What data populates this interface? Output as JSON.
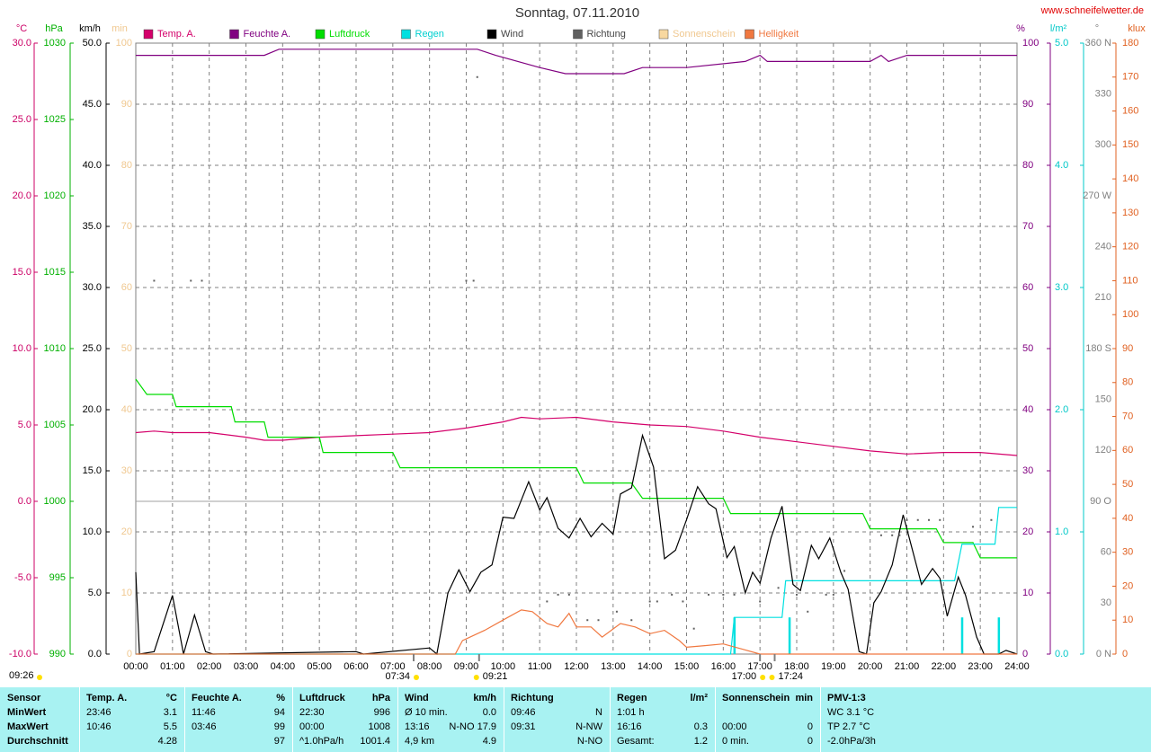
{
  "chart_data": {
    "type": "multi-axis-line",
    "title": "Sonntag, 07.11.2010",
    "source": "www.schneifelwetter.de",
    "grid": true,
    "xlim": [
      0,
      24
    ],
    "xticks": [
      {
        "value": 0,
        "label": "00:00"
      },
      {
        "value": 1,
        "label": "01:00"
      },
      {
        "value": 2,
        "label": "02:00"
      },
      {
        "value": 3,
        "label": "03:00"
      },
      {
        "value": 4,
        "label": "04:00"
      },
      {
        "value": 5,
        "label": "05:00"
      },
      {
        "value": 6,
        "label": "06:00"
      },
      {
        "value": 7,
        "label": "07:00"
      },
      {
        "value": 8,
        "label": "08:00"
      },
      {
        "value": 9,
        "label": "09:00"
      },
      {
        "value": 10,
        "label": "10:00"
      },
      {
        "value": 11,
        "label": "11:00"
      },
      {
        "value": 12,
        "label": "12:00"
      },
      {
        "value": 13,
        "label": "13:00"
      },
      {
        "value": 14,
        "label": "14:00"
      },
      {
        "value": 15,
        "label": "15:00"
      },
      {
        "value": 16,
        "label": "16:00"
      },
      {
        "value": 17,
        "label": "17:00"
      },
      {
        "value": 18,
        "label": "18:00"
      },
      {
        "value": 19,
        "label": "19:00"
      },
      {
        "value": 20,
        "label": "20:00"
      },
      {
        "value": 21,
        "label": "21:00"
      },
      {
        "value": 22,
        "label": "22:00"
      },
      {
        "value": 23,
        "label": "23:00"
      },
      {
        "value": 24,
        "label": "24:00"
      }
    ],
    "axes": [
      {
        "unit": "°C",
        "color": "#cc0066",
        "lim": [
          -10,
          30
        ],
        "ticks": [
          {
            "value": -10,
            "label": "-10.0"
          },
          {
            "value": -5,
            "label": "-5.0"
          },
          {
            "value": 0,
            "label": "0.0"
          },
          {
            "value": 5,
            "label": "5.0"
          },
          {
            "value": 10,
            "label": "10.0"
          },
          {
            "value": 15,
            "label": "15.0"
          },
          {
            "value": 20,
            "label": "20.0"
          },
          {
            "value": 25,
            "label": "25.0"
          },
          {
            "value": 30,
            "label": "30.0"
          }
        ]
      },
      {
        "unit": "hPa",
        "color": "#00b000",
        "lim": [
          990,
          1030
        ],
        "ticks": [
          990,
          995,
          1000,
          1005,
          1010,
          1015,
          1020,
          1025,
          1030
        ]
      },
      {
        "unit": "km/h",
        "color": "#000000",
        "lim": [
          0,
          50
        ],
        "ticks": [
          {
            "value": 0,
            "label": "0.0"
          },
          {
            "value": 5,
            "label": "5.0"
          },
          {
            "value": 10,
            "label": "10.0"
          },
          {
            "value": 15,
            "label": "15.0"
          },
          {
            "value": 20,
            "label": "20.0"
          },
          {
            "value": 25,
            "label": "25.0"
          },
          {
            "value": 30,
            "label": "30.0"
          },
          {
            "value": 35,
            "label": "35.0"
          },
          {
            "value": 40,
            "label": "40.0"
          },
          {
            "value": 45,
            "label": "45.0"
          },
          {
            "value": 50,
            "label": "50.0"
          }
        ]
      },
      {
        "unit": "min",
        "color": "#f0c890",
        "lim": [
          0,
          100
        ],
        "ticks": [
          0,
          10,
          20,
          30,
          40,
          50,
          60,
          70,
          80,
          90,
          100
        ]
      },
      {
        "unit": "%",
        "color": "#800080",
        "lim": [
          0,
          100
        ],
        "ticks": [
          0,
          10,
          20,
          30,
          40,
          50,
          60,
          70,
          80,
          90,
          100
        ]
      },
      {
        "unit": "l/m²",
        "color": "#00c8c8",
        "lim": [
          0,
          5
        ],
        "ticks": [
          {
            "value": 0,
            "label": "0.0"
          },
          {
            "value": 1,
            "label": "1.0"
          },
          {
            "value": 2,
            "label": "2.0"
          },
          {
            "value": 3,
            "label": "3.0"
          },
          {
            "value": 4,
            "label": "4.0"
          },
          {
            "value": 5,
            "label": "5.0"
          }
        ]
      },
      {
        "unit": "°",
        "color": "#808080",
        "lim": [
          0,
          360
        ],
        "ticks": [
          {
            "value": 0,
            "label": "0   N"
          },
          30,
          60,
          {
            "value": 90,
            "label": "90  O"
          },
          120,
          150,
          {
            "value": 180,
            "label": "180 S"
          },
          210,
          240,
          {
            "value": 270,
            "label": "270 W"
          },
          300,
          330,
          {
            "value": 360,
            "label": "360 N"
          }
        ]
      },
      {
        "unit": "klux",
        "color": "#e06020",
        "lim": [
          0,
          180
        ],
        "ticks": [
          0,
          10,
          20,
          30,
          40,
          50,
          60,
          70,
          80,
          90,
          100,
          110,
          120,
          130,
          140,
          150,
          160,
          170,
          180
        ]
      }
    ],
    "series": [
      {
        "name": "Temp. A.",
        "color": "#d4006a",
        "axis": "°C",
        "style": "line",
        "x": [
          0,
          0.5,
          1,
          2,
          3,
          3.5,
          4,
          5,
          6,
          7,
          8,
          9,
          10,
          10.5,
          11,
          12,
          13,
          14,
          15,
          16,
          17,
          18,
          19,
          20,
          21,
          22,
          23,
          24
        ],
        "values": [
          4.5,
          4.6,
          4.5,
          4.5,
          4.2,
          4.0,
          4.0,
          4.2,
          4.3,
          4.4,
          4.5,
          4.8,
          5.2,
          5.5,
          5.4,
          5.5,
          5.2,
          5.0,
          4.9,
          4.6,
          4.2,
          3.9,
          3.6,
          3.3,
          3.1,
          3.2,
          3.2,
          3.0
        ]
      },
      {
        "name": "Feuchte A.",
        "color": "#800080",
        "axis": "%",
        "style": "line",
        "x": [
          0,
          3.5,
          3.9,
          9.3,
          9.8,
          11,
          11.7,
          13.3,
          13.8,
          15,
          16.6,
          17,
          17.2,
          20,
          20.3,
          20.5,
          21,
          24
        ],
        "values": [
          98,
          98,
          99,
          99,
          98,
          96,
          95,
          95,
          96,
          96,
          97,
          98,
          97,
          97,
          98,
          97,
          98,
          98
        ]
      },
      {
        "name": "Luftdruck",
        "color": "#00dd00",
        "axis": "hPa",
        "style": "line",
        "x": [
          0,
          0.3,
          1,
          1.1,
          2.6,
          2.7,
          3.5,
          3.6,
          5,
          5.1,
          7,
          7.2,
          12,
          12.2,
          13.5,
          13.8,
          16,
          16.2,
          19.8,
          20,
          21.8,
          22,
          22.8,
          23,
          24
        ],
        "values": [
          1008,
          1007,
          1007,
          1006.2,
          1006.2,
          1005.2,
          1005.2,
          1004.2,
          1004.2,
          1003.2,
          1003.2,
          1002.2,
          1002.2,
          1001.2,
          1001.2,
          1000.2,
          1000.2,
          999.2,
          999.2,
          998.2,
          998.2,
          997.3,
          997.3,
          996.3,
          996.3
        ]
      },
      {
        "name": "Regen",
        "color": "#00e0e0",
        "axis": "l/m²",
        "style": "line",
        "x": [
          0,
          16.2,
          16.3,
          17.6,
          17.7,
          22.3,
          22.5,
          23.4,
          23.5,
          24
        ],
        "values": [
          0,
          0,
          0.3,
          0.3,
          0.6,
          0.6,
          0.9,
          0.9,
          1.2,
          1.2
        ],
        "bars": {
          "x": [
            16.3,
            17.8,
            22.5,
            23.5
          ],
          "values": [
            0.3,
            0.3,
            0.3,
            0.3
          ]
        }
      },
      {
        "name": "Wind",
        "color": "#000000",
        "axis": "km/h",
        "style": "line",
        "x": [
          0,
          0.1,
          0.5,
          1,
          1.3,
          1.6,
          1.9,
          2.1,
          6,
          6.2,
          8,
          8.2,
          8.5,
          8.8,
          9.1,
          9.4,
          9.7,
          10,
          10.3,
          10.7,
          11,
          11.2,
          11.5,
          11.8,
          12.1,
          12.4,
          12.7,
          13,
          13.2,
          13.5,
          13.8,
          14.1,
          14.4,
          14.7,
          15,
          15.3,
          15.6,
          15.8,
          16.1,
          16.3,
          16.6,
          16.8,
          17,
          17.3,
          17.6,
          17.9,
          18.1,
          18.4,
          18.6,
          18.9,
          19.2,
          19.4,
          19.7,
          19.9,
          20.1,
          20.3,
          20.6,
          20.9,
          21.1,
          21.4,
          21.7,
          21.9,
          22.1,
          22.4,
          22.6,
          22.9,
          23.1,
          23.5,
          23.7,
          24
        ],
        "values": [
          6.7,
          0,
          0.2,
          4.8,
          0,
          3.2,
          0.2,
          0,
          0.2,
          0,
          0.5,
          0,
          5,
          6.9,
          5.1,
          6.7,
          7.3,
          11.2,
          11.1,
          14.1,
          11.8,
          12.8,
          10.3,
          9.5,
          11.1,
          9.6,
          10.7,
          9.8,
          13.1,
          13.6,
          17.9,
          15.3,
          7.8,
          8.5,
          11,
          13.7,
          12.3,
          11.9,
          7.9,
          8.8,
          5,
          6.7,
          5.8,
          9.5,
          12.1,
          5.7,
          5.2,
          8.9,
          7.8,
          9.5,
          6.7,
          5.3,
          0.2,
          0,
          4.2,
          5.1,
          7.3,
          11.4,
          9.1,
          5.7,
          7,
          6.2,
          3.1,
          6.3,
          4.8,
          1.4,
          0,
          0,
          0.3,
          0
        ]
      },
      {
        "name": "Richtung",
        "color": "#606060",
        "axis": "°",
        "style": "dots",
        "x": [
          0.5,
          1.5,
          1.8,
          9.3,
          9.0,
          9.2,
          11.2,
          11.5,
          11.8,
          12.3,
          12.6,
          13.1,
          13.5,
          14,
          14.2,
          14.6,
          14.9,
          15.2,
          15.6,
          16,
          16.3,
          17,
          17.5,
          18,
          18.3,
          18.8,
          19,
          19.3,
          20.3,
          20.6,
          20.8,
          21,
          21.3,
          21.6,
          21.9,
          22.8,
          23.3
        ],
        "values": [
          220,
          220,
          220,
          340,
          220,
          220,
          31,
          35,
          35,
          20,
          20,
          25,
          20,
          31,
          31,
          35,
          31,
          15,
          35,
          35,
          35,
          31,
          39,
          35,
          25,
          35,
          35,
          49,
          70,
          70,
          70,
          79,
          79,
          79,
          79,
          75,
          79
        ]
      },
      {
        "name": "Sonnenschein",
        "color": "#f8d8a0",
        "axis": "min",
        "style": "line"
      },
      {
        "name": "Helligkeit",
        "color": "#f07840",
        "axis": "klux",
        "style": "line",
        "x": [
          0,
          8.7,
          8.9,
          9.5,
          10,
          10.5,
          10.8,
          11.2,
          11.5,
          11.8,
          12,
          12.4,
          12.7,
          13.2,
          13.6,
          14,
          14.4,
          14.8,
          15,
          15.5,
          16,
          16.5,
          17,
          24
        ],
        "values": [
          0,
          0,
          4,
          7,
          10,
          13,
          12.5,
          9,
          8,
          12,
          8,
          8,
          5,
          9,
          8,
          6,
          7,
          4,
          2,
          2.5,
          3,
          1.5,
          0,
          0
        ]
      }
    ],
    "annotations": [
      {
        "x": 7.567,
        "label": "07:34"
      },
      {
        "x": 9.35,
        "label": "09:21"
      },
      {
        "x": 17.0,
        "label": "17:00"
      },
      {
        "x": 17.4,
        "label": "17:24"
      }
    ],
    "daylength": "09:26"
  },
  "table": {
    "header": {
      "label": "Sensor",
      "cells": [
        {
          "l": "Temp. A.",
          "r": "°C"
        },
        {
          "l": "Feuchte A.",
          "r": "%"
        },
        {
          "l": "Luftdruck",
          "r": "hPa"
        },
        {
          "l": "Wind",
          "r": "km/h"
        },
        {
          "l": "Richtung"
        },
        {
          "l": "Regen",
          "r": "l/m²"
        },
        {
          "l": "Sonnenschein",
          "r": "min"
        },
        {
          "l": "PMV-1:3"
        }
      ]
    },
    "rows": [
      {
        "label": "MinWert",
        "cells": [
          {
            "l": "23:46",
            "r": "3.1"
          },
          {
            "l": "11:46",
            "r": "94"
          },
          {
            "l": "22:30",
            "r": "996"
          },
          {
            "l": "Ø 10 min.",
            "r": "0.0"
          },
          {
            "l": "09:46",
            "r": "N"
          },
          {
            "l": "1:01 h"
          },
          {},
          {
            "l": "WC 3.1 °C"
          }
        ]
      },
      {
        "label": "MaxWert",
        "cells": [
          {
            "l": "10:46",
            "r": "5.5"
          },
          {
            "l": "03:46",
            "r": "99"
          },
          {
            "l": "00:00",
            "r": "1008"
          },
          {
            "l": "13:16",
            "r": "N-NO 17.9"
          },
          {
            "l": "09:31",
            "r": "N-NW"
          },
          {
            "l": "16:16",
            "r": "0.3"
          },
          {
            "l": "00:00",
            "r": "0"
          },
          {
            "l": "TP 2.7 °C"
          }
        ]
      },
      {
        "label": "Durchschnitt",
        "cells": [
          {
            "r": "4.28"
          },
          {
            "r": "97"
          },
          {
            "l": "^1.0hPa/h",
            "r": "1001.4"
          },
          {
            "l": "4,9 km",
            "r": "4.9"
          },
          {
            "r": "N-NO"
          },
          {
            "l": "Gesamt:",
            "r": "1.2"
          },
          {
            "l": "0 min.",
            "r": "0"
          },
          {
            "l": "-2.0hPa/3h"
          }
        ]
      }
    ]
  }
}
